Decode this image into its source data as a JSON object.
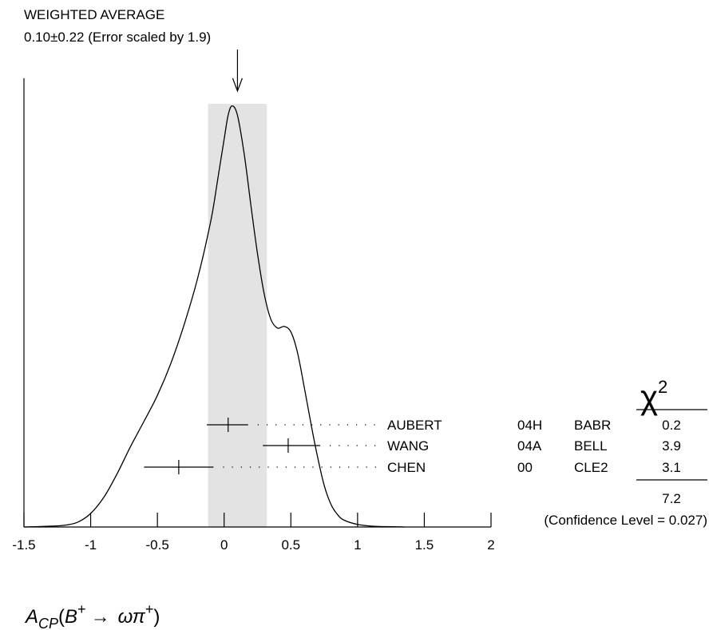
{
  "chart_data": {
    "type": "ideogram",
    "header": {
      "title": "WEIGHTED AVERAGE",
      "value": "0.10±0.22 (Error scaled by 1.9)"
    },
    "weighted_average": {
      "value": 0.1,
      "error": 0.22,
      "scale_factor": 1.9
    },
    "band": [
      -0.12,
      0.32
    ],
    "xlim": [
      -1.5,
      2
    ],
    "xticks": [
      "-1.5",
      "-1",
      "-0.5",
      "0",
      "0.5",
      "1",
      "1.5",
      "2"
    ],
    "xtick_values": [
      -1.5,
      -1,
      -0.5,
      0,
      0.5,
      1,
      1.5,
      2
    ],
    "xlabel": {
      "A": "A",
      "sub": "CP",
      "open": "(",
      "B": "B",
      "sup1": "+",
      "arrow": "→",
      "omega": "ω",
      "pi": "π",
      "sup2": "+",
      "close": ")"
    },
    "chi2_header": {
      "symbol": "χ",
      "power": "2"
    },
    "measurements": [
      {
        "author": "AUBERT",
        "year": "04H",
        "experiment": "BABR",
        "value": 0.03,
        "lo": -0.13,
        "hi": 0.18,
        "chi2": "0.2"
      },
      {
        "author": "WANG",
        "year": "04A",
        "experiment": "BELL",
        "value": 0.48,
        "lo": 0.29,
        "hi": 0.72,
        "chi2": "3.9"
      },
      {
        "author": "CHEN",
        "year": "00",
        "experiment": "CLE2",
        "value": -0.34,
        "lo": -0.6,
        "hi": -0.08,
        "chi2": "3.1"
      }
    ],
    "chi2_total": "7.2",
    "confidence_level": "(Confidence Level = 0.027)",
    "curve": [
      [
        -1.5,
        0.0
      ],
      [
        -1.3,
        0.002
      ],
      [
        -1.2,
        0.004
      ],
      [
        -1.1,
        0.011
      ],
      [
        -1.0,
        0.032
      ],
      [
        -0.9,
        0.071
      ],
      [
        -0.8,
        0.127
      ],
      [
        -0.7,
        0.191
      ],
      [
        -0.6,
        0.25
      ],
      [
        -0.5,
        0.311
      ],
      [
        -0.4,
        0.386
      ],
      [
        -0.3,
        0.478
      ],
      [
        -0.2,
        0.586
      ],
      [
        -0.1,
        0.723
      ],
      [
        -0.05,
        0.818
      ],
      [
        0.0,
        0.916
      ],
      [
        0.03,
        0.973
      ],
      [
        0.06,
        0.995
      ],
      [
        0.1,
        0.973
      ],
      [
        0.15,
        0.882
      ],
      [
        0.2,
        0.762
      ],
      [
        0.25,
        0.646
      ],
      [
        0.3,
        0.551
      ],
      [
        0.35,
        0.491
      ],
      [
        0.4,
        0.47
      ],
      [
        0.45,
        0.474
      ],
      [
        0.5,
        0.461
      ],
      [
        0.55,
        0.412
      ],
      [
        0.6,
        0.331
      ],
      [
        0.65,
        0.245
      ],
      [
        0.7,
        0.166
      ],
      [
        0.75,
        0.098
      ],
      [
        0.8,
        0.054
      ],
      [
        0.85,
        0.029
      ],
      [
        0.9,
        0.016
      ],
      [
        1.0,
        0.006
      ],
      [
        1.1,
        0.002
      ],
      [
        1.2,
        0.001
      ],
      [
        1.35,
        0.0
      ]
    ]
  }
}
